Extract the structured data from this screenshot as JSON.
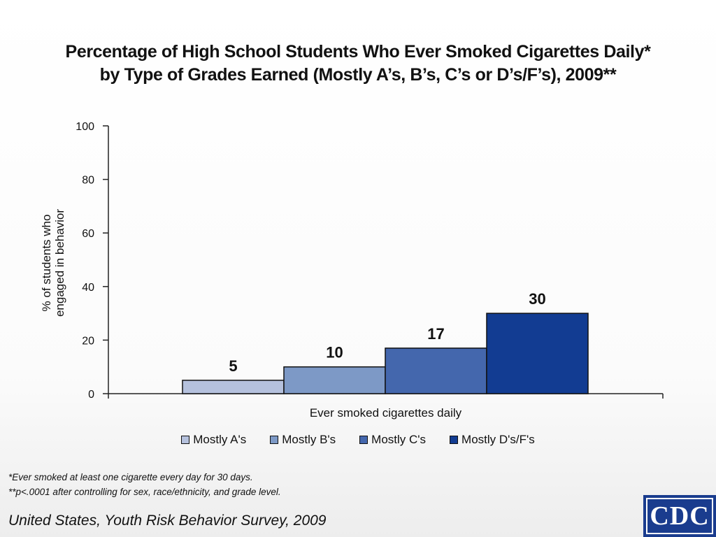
{
  "slide": {
    "title_line1": "Percentage of High School Students Who Ever Smoked Cigarettes Daily*",
    "title_line2": "by Type of Grades Earned (Mostly A’s, B’s, C’s or D’s/F’s), 2009**",
    "footnote1": "*Ever smoked at least one cigarette every day for 30 days.",
    "footnote2": "**p<.0001 after controlling for sex, race/ethnicity, and grade level.",
    "source": "United States, Youth Risk Behavior Survey, 2009",
    "logo_text": "CDC"
  },
  "chart_data": {
    "type": "bar",
    "categories": [
      "Ever smoked cigarettes daily"
    ],
    "series": [
      {
        "name": "Mostly A's",
        "values": [
          5
        ],
        "color": "#b5c1dd"
      },
      {
        "name": "Mostly B's",
        "values": [
          10
        ],
        "color": "#7d99c6"
      },
      {
        "name": "Mostly C's",
        "values": [
          17
        ],
        "color": "#4467ad"
      },
      {
        "name": "Mostly D's/F's",
        "values": [
          30
        ],
        "color": "#123c92"
      }
    ],
    "title": "Percentage of High School Students Who Ever Smoked Cigarettes Daily* by Type of Grades Earned (Mostly A’s, B’s, C’s or D’s/F’s), 2009**",
    "xlabel": "Ever smoked cigarettes daily",
    "ylabel_lines": [
      "% of students who",
      "engaged in behavior"
    ],
    "ylim": [
      0,
      100
    ],
    "yticks": [
      0,
      20,
      40,
      60,
      80,
      100
    ],
    "data_labels": [
      "5",
      "10",
      "17",
      "30"
    ],
    "legend_position": "bottom",
    "grid": false
  }
}
